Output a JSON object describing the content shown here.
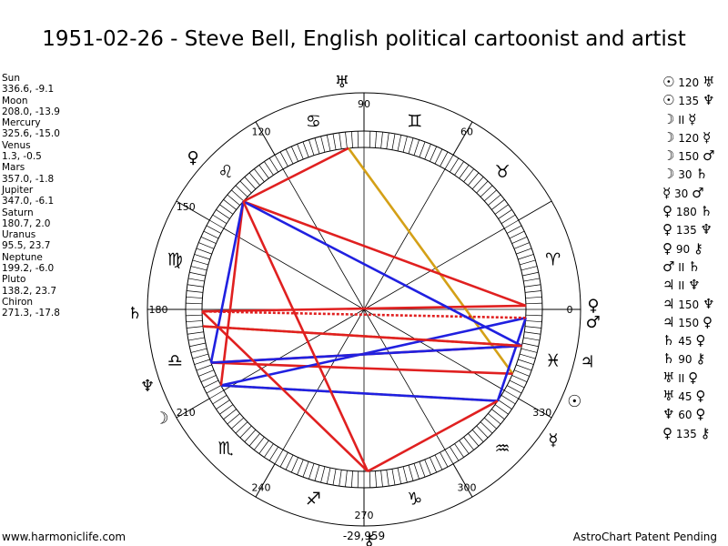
{
  "title": "1951-02-26 - Steve Bell, English political cartoonist and artist",
  "planets": [
    {
      "name": "Sun",
      "value": "336.6, -9.1"
    },
    {
      "name": "Moon",
      "value": "208.0, -13.9"
    },
    {
      "name": "Mercury",
      "value": "325.6, -15.0"
    },
    {
      "name": "Venus",
      "value": "1.3, -0.5"
    },
    {
      "name": "Mars",
      "value": "357.0, -1.8"
    },
    {
      "name": "Jupiter",
      "value": "347.0, -6.1"
    },
    {
      "name": "Saturn",
      "value": "180.7, 2.0"
    },
    {
      "name": "Uranus",
      "value": "95.5, 23.7"
    },
    {
      "name": "Neptune",
      "value": "199.2, -6.0"
    },
    {
      "name": "Pluto",
      "value": "138.2, 23.7"
    },
    {
      "name": "Chiron",
      "value": "271.3, -17.8"
    }
  ],
  "aspects": [
    {
      "p1": "☉",
      "angle": "120",
      "p2": "♅"
    },
    {
      "p1": "☉",
      "angle": "135",
      "p2": "♆"
    },
    {
      "p1": "☽",
      "angle": "II",
      "p2": "☿"
    },
    {
      "p1": "☽",
      "angle": "120",
      "p2": "☿"
    },
    {
      "p1": "☽",
      "angle": "150",
      "p2": "♂"
    },
    {
      "p1": "☽",
      "angle": "30",
      "p2": "♄"
    },
    {
      "p1": "☿",
      "angle": "30",
      "p2": "♂"
    },
    {
      "p1": "♀",
      "angle": "180",
      "p2": "♄"
    },
    {
      "p1": "♀",
      "angle": "135",
      "p2": "♆"
    },
    {
      "p1": "♀",
      "angle": "90",
      "p2": "⚷"
    },
    {
      "p1": "♂",
      "angle": "II",
      "p2": "♄"
    },
    {
      "p1": "♃",
      "angle": "II",
      "p2": "♆"
    },
    {
      "p1": "♃",
      "angle": "150",
      "p2": "♆"
    },
    {
      "p1": "♃",
      "angle": "150",
      "p2": "♀"
    },
    {
      "p1": "♄",
      "angle": "45",
      "p2": "♀"
    },
    {
      "p1": "♄",
      "angle": "90",
      "p2": "⚷"
    },
    {
      "p1": "♅",
      "angle": "II",
      "p2": "♀"
    },
    {
      "p1": "♅",
      "angle": "45",
      "p2": "♀"
    },
    {
      "p1": "♆",
      "angle": "60",
      "p2": "♀"
    },
    {
      "p1": "♀",
      "angle": "135",
      "p2": "⚷"
    }
  ],
  "wheel": {
    "degree_labels": [
      {
        "text": "90",
        "deg": 90
      },
      {
        "text": "60",
        "deg": 60
      },
      {
        "text": "120",
        "deg": 120
      },
      {
        "text": "150",
        "deg": 150
      },
      {
        "text": "0",
        "deg": 0
      },
      {
        "text": "330",
        "deg": 330
      },
      {
        "text": "300",
        "deg": 300
      },
      {
        "text": "270",
        "deg": 270
      },
      {
        "text": "240",
        "deg": 240
      },
      {
        "text": "210",
        "deg": 210
      },
      {
        "text": "180",
        "deg": 180
      }
    ],
    "signs": [
      {
        "glyph": "♈",
        "deg": 15
      },
      {
        "glyph": "♉",
        "deg": 45
      },
      {
        "glyph": "♊",
        "deg": 75
      },
      {
        "glyph": "♋",
        "deg": 105
      },
      {
        "glyph": "♌",
        "deg": 135
      },
      {
        "glyph": "♍",
        "deg": 165
      },
      {
        "glyph": "♎",
        "deg": 195
      },
      {
        "glyph": "♏",
        "deg": 225
      },
      {
        "glyph": "♐",
        "deg": 255
      },
      {
        "glyph": "♑",
        "deg": 285
      },
      {
        "glyph": "♒",
        "deg": 315
      },
      {
        "glyph": "♓",
        "deg": 345
      }
    ],
    "bodies": [
      {
        "glyph": "☉",
        "deg": 336.6,
        "name": "sun"
      },
      {
        "glyph": "☽",
        "deg": 208.0,
        "name": "moon"
      },
      {
        "glyph": "☿",
        "deg": 325.6,
        "name": "mercury"
      },
      {
        "glyph": "♀",
        "deg": 1.3,
        "name": "venus"
      },
      {
        "glyph": "♂",
        "deg": 357.0,
        "name": "mars"
      },
      {
        "glyph": "♃",
        "deg": 347.0,
        "name": "jupiter"
      },
      {
        "glyph": "♄",
        "deg": 180.7,
        "name": "saturn"
      },
      {
        "glyph": "♅",
        "deg": 95.5,
        "name": "uranus"
      },
      {
        "glyph": "♆",
        "deg": 199.2,
        "name": "neptune"
      },
      {
        "glyph": "♀",
        "deg": 138.2,
        "name": "pluto"
      },
      {
        "glyph": "⚷",
        "deg": 271.3,
        "name": "chiron"
      }
    ],
    "aspect_lines": [
      {
        "a": 336.6,
        "b": 95.5,
        "color": "#d4a017",
        "style": "solid"
      },
      {
        "a": 336.6,
        "b": 199.2,
        "color": "#e02020",
        "style": "solid"
      },
      {
        "a": 208.0,
        "b": 325.6,
        "color": "#d4a017",
        "style": "dotted"
      },
      {
        "a": 208.0,
        "b": 325.6,
        "color": "#2020e0",
        "style": "solid"
      },
      {
        "a": 208.0,
        "b": 357.0,
        "color": "#2020e0",
        "style": "solid"
      },
      {
        "a": 208.0,
        "b": 138.2,
        "color": "#e02020",
        "style": "solid"
      },
      {
        "a": 325.6,
        "b": 357.0,
        "color": "#2020e0",
        "style": "solid"
      },
      {
        "a": 325.6,
        "b": 271.3,
        "color": "#e02020",
        "style": "solid"
      },
      {
        "a": 1.3,
        "b": 180.7,
        "color": "#e02020",
        "style": "solid"
      },
      {
        "a": 1.3,
        "b": 138.2,
        "color": "#e02020",
        "style": "solid"
      },
      {
        "a": 357.0,
        "b": 180.7,
        "color": "#e02020",
        "style": "dotted"
      },
      {
        "a": 347.0,
        "b": 199.2,
        "color": "#e02020",
        "style": "solid"
      },
      {
        "a": 347.0,
        "b": 199.2,
        "color": "#2020e0",
        "style": "solid"
      },
      {
        "a": 347.0,
        "b": 138.2,
        "color": "#2020e0",
        "style": "solid"
      },
      {
        "a": 347.0,
        "b": 186.0,
        "color": "#d4a017",
        "style": "dotted"
      },
      {
        "a": 180.7,
        "b": 271.3,
        "color": "#e02020",
        "style": "solid"
      },
      {
        "a": 95.5,
        "b": 138.2,
        "color": "#e02020",
        "style": "solid"
      },
      {
        "a": 199.2,
        "b": 138.2,
        "color": "#2020e0",
        "style": "solid"
      },
      {
        "a": 138.2,
        "b": 271.3,
        "color": "#e02020",
        "style": "solid"
      },
      {
        "a": 186.0,
        "b": 347.0,
        "color": "#e02020",
        "style": "solid"
      }
    ],
    "center_text": "-29,959"
  },
  "footer": {
    "left": "www.harmoniclife.com",
    "right": "AstroChart Patent Pending"
  }
}
